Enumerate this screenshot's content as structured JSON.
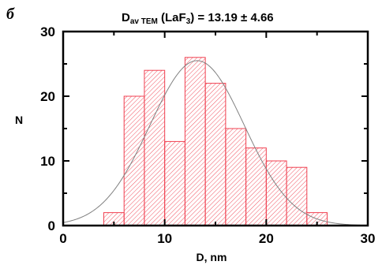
{
  "panel_label": "б",
  "chart_data": {
    "type": "bar",
    "title_main": "D",
    "title_sub": "av TEM",
    "title_mid": " (LaF",
    "title_sub2": "3",
    "title_tail": ") = 13.19 ± 4.66",
    "xlabel": "D, nm",
    "ylabel": "N",
    "xlim": [
      0,
      30
    ],
    "ylim": [
      0,
      30
    ],
    "xticks": [
      0,
      10,
      20,
      30
    ],
    "yticks": [
      0,
      10,
      20,
      30
    ],
    "bin_width": 2,
    "bins": [
      {
        "x0": 4,
        "value": 2
      },
      {
        "x0": 6,
        "value": 20
      },
      {
        "x0": 8,
        "value": 24
      },
      {
        "x0": 10,
        "value": 13
      },
      {
        "x0": 12,
        "value": 26
      },
      {
        "x0": 14,
        "value": 22
      },
      {
        "x0": 16,
        "value": 15
      },
      {
        "x0": 18,
        "value": 12
      },
      {
        "x0": 20,
        "value": 10
      },
      {
        "x0": 22,
        "value": 9
      },
      {
        "x0": 24,
        "value": 2
      }
    ],
    "fit_mean": 13.19,
    "fit_sd": 4.66,
    "fit_peak": 25.5,
    "bar_color": "#f04050",
    "fit_color": "#808080"
  }
}
